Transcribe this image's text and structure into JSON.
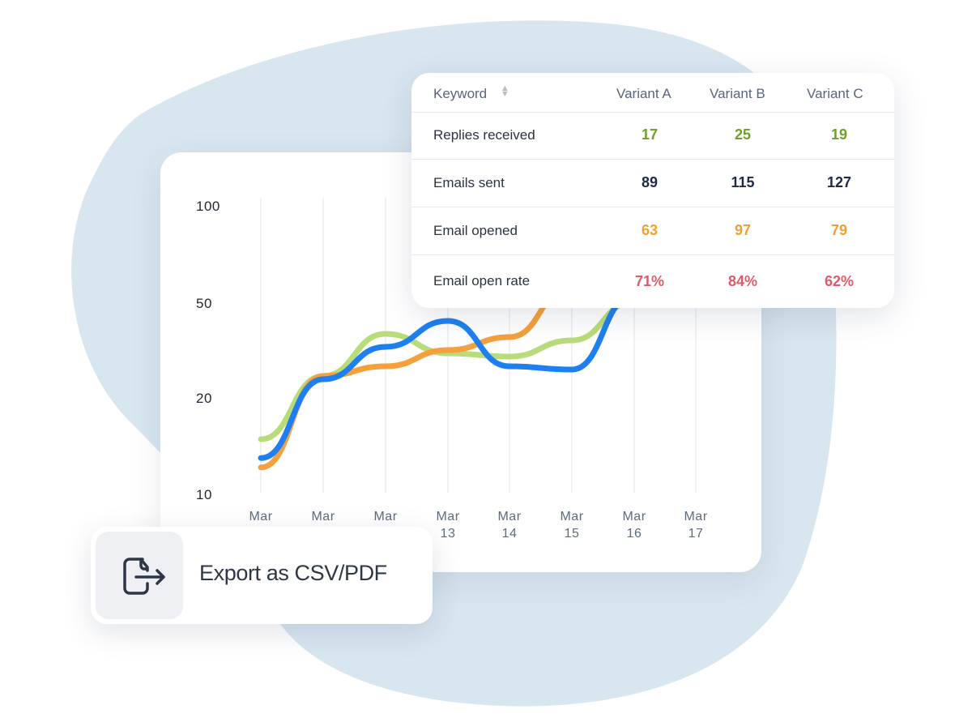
{
  "colors": {
    "blob": "#d8e6f0",
    "series_green": "#b9dc7a",
    "series_orange": "#f5a03c",
    "series_blue": "#1e80f0",
    "value_green": "#6ea12a",
    "value_dark": "#1f2a44",
    "value_orange": "#f0a030",
    "value_red": "#e05a6a"
  },
  "table": {
    "columns": {
      "keyword": "Keyword",
      "a": "Variant A",
      "b": "Variant B",
      "c": "Variant C"
    },
    "sort_icon": "sort-icon",
    "rows": [
      {
        "label": "Replies received",
        "a": "17",
        "b": "25",
        "c": "19",
        "color": "#6ea12a"
      },
      {
        "label": "Emails sent",
        "a": "89",
        "b": "115",
        "c": "127",
        "color": "#1f2a44"
      },
      {
        "label": "Email opened",
        "a": "63",
        "b": "97",
        "c": "79",
        "color": "#f0a030"
      },
      {
        "label": "Email open rate",
        "a": "71%",
        "b": "84%",
        "c": "62%",
        "color": "#e05a6a"
      }
    ]
  },
  "export": {
    "label": "Export as CSV/PDF",
    "icon": "export-file-icon"
  },
  "chart_data": {
    "type": "line",
    "y_ticks": [
      "100",
      "50",
      "20",
      "10"
    ],
    "x_ticks": [
      {
        "line1": "Mar",
        "line2": ""
      },
      {
        "line1": "Mar",
        "line2": ""
      },
      {
        "line1": "Mar",
        "line2": ""
      },
      {
        "line1": "Mar",
        "line2": "13"
      },
      {
        "line1": "Mar",
        "line2": "14"
      },
      {
        "line1": "Mar",
        "line2": "15"
      },
      {
        "line1": "Mar",
        "line2": "16"
      },
      {
        "line1": "Mar",
        "line2": "17"
      }
    ],
    "series": [
      {
        "color": "#b9dc7a",
        "values": [
          15,
          25,
          38,
          32,
          31,
          36,
          48
        ]
      },
      {
        "color": "#f5a03c",
        "values": [
          12,
          25,
          28,
          33,
          37,
          55,
          70
        ]
      },
      {
        "color": "#1e80f0",
        "values": [
          13,
          24,
          34,
          42,
          28,
          27,
          50
        ]
      }
    ],
    "grid": true
  }
}
